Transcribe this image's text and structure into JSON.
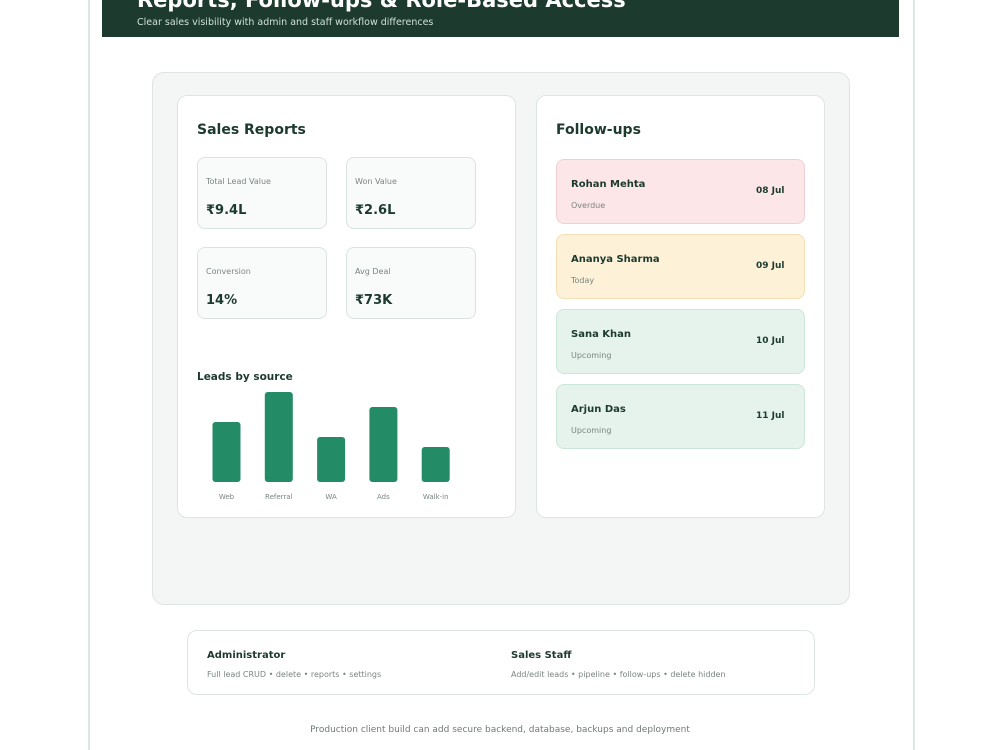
{
  "header": {
    "title": "Reports, Follow-ups & Role-Based Access",
    "subtitle": "Clear sales visibility with admin and staff workflow differences"
  },
  "sales_reports": {
    "title": "Sales Reports",
    "stats": [
      {
        "label": "Total Lead Value",
        "value": "₹9.4L"
      },
      {
        "label": "Won Value",
        "value": "₹2.6L"
      },
      {
        "label": "Conversion",
        "value": "14%"
      },
      {
        "label": "Avg Deal",
        "value": "₹73K"
      }
    ],
    "leads_chart": {
      "title": "Leads by source",
      "categories": [
        "Web",
        "Referral",
        "WA",
        "Ads",
        "Walk-in"
      ],
      "values": [
        60,
        90,
        45,
        75,
        35
      ],
      "color": "#238c66"
    }
  },
  "follow_ups": {
    "title": "Follow-ups",
    "items": [
      {
        "name": "Rohan Mehta",
        "status": "Overdue",
        "date": "08 Jul"
      },
      {
        "name": "Ananya Sharma",
        "status": "Today",
        "date": "09 Jul"
      },
      {
        "name": "Sana Khan",
        "status": "Upcoming",
        "date": "10 Jul"
      },
      {
        "name": "Arjun Das",
        "status": "Upcoming",
        "date": "11 Jul"
      }
    ]
  },
  "roles": [
    {
      "name": "Administrator",
      "description": "Full lead CRUD • delete • reports • settings"
    },
    {
      "name": "Sales Staff",
      "description": "Add/edit leads • pipeline • follow-ups • delete hidden"
    }
  ],
  "footer": "Production client build can add secure backend, database, backups and deployment"
}
